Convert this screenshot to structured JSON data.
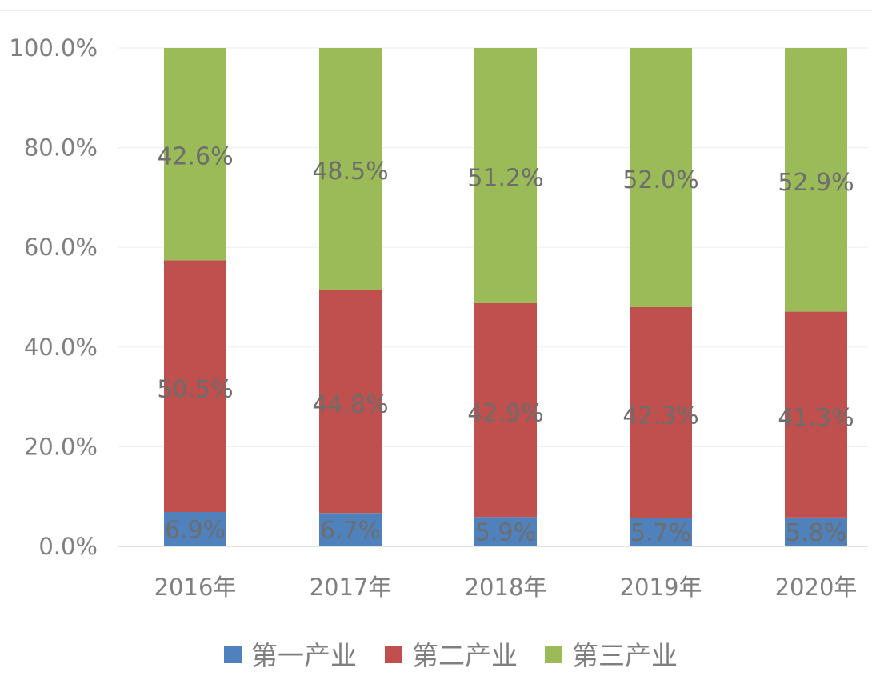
{
  "chart_data": {
    "type": "bar",
    "stacked": true,
    "categories": [
      "2016年",
      "2017年",
      "2018年",
      "2019年",
      "2020年"
    ],
    "series": [
      {
        "name": "第一产业",
        "values": [
          6.9,
          6.7,
          5.9,
          5.7,
          5.8
        ],
        "labels": [
          "6.9%",
          "6.7%",
          "5.9%",
          "5.7%",
          "5.8%"
        ],
        "color": "#4f81bd"
      },
      {
        "name": "第二产业",
        "values": [
          50.5,
          44.8,
          42.9,
          42.3,
          41.3
        ],
        "labels": [
          "50.5%",
          "44.8%",
          "42.9%",
          "42.3%",
          "41.3%"
        ],
        "color": "#c0504d"
      },
      {
        "name": "第三产业",
        "values": [
          42.6,
          48.5,
          51.2,
          52.0,
          52.9
        ],
        "labels": [
          "42.6%",
          "48.5%",
          "51.2%",
          "52.0%",
          "52.9%"
        ],
        "color": "#9bbb59"
      }
    ],
    "y_ticks": [
      "0.0%",
      "20.0%",
      "40.0%",
      "60.0%",
      "80.0%",
      "100.0%"
    ],
    "ylim": [
      0,
      100
    ],
    "grid": true,
    "legend": "bottom"
  }
}
